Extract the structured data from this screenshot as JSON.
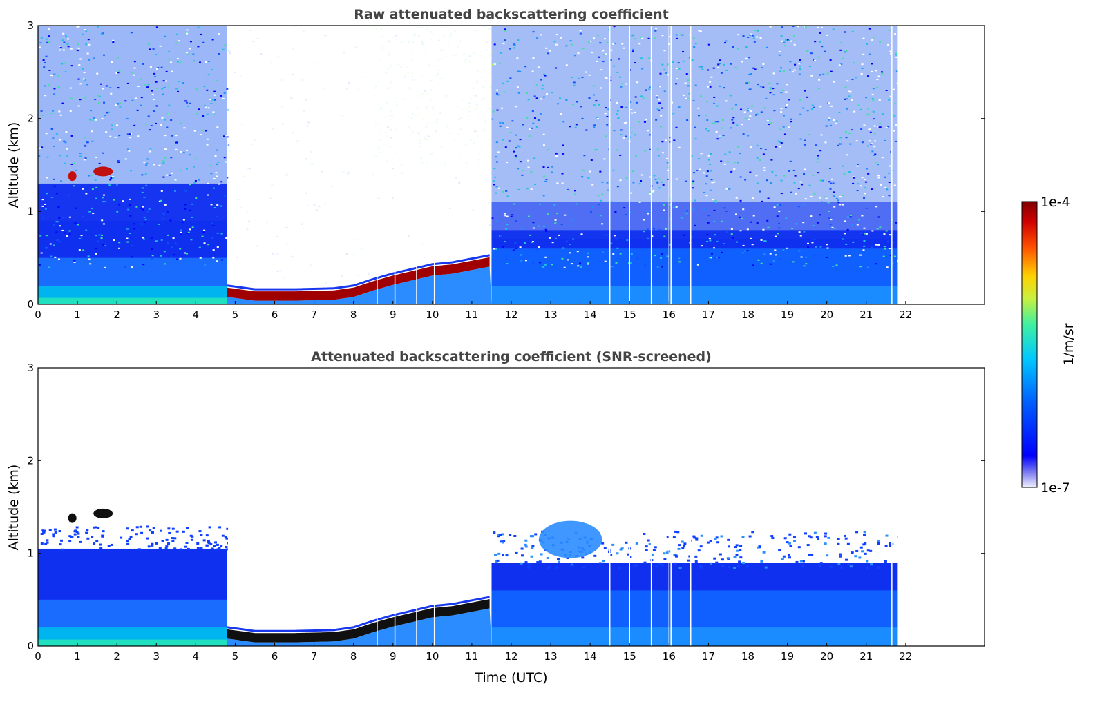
{
  "chart_data": [
    {
      "type": "heatmap",
      "title": "Raw attenuated backscattering coefficient",
      "xlabel": "",
      "ylabel": "Altitude (km)",
      "xlim": [
        0,
        24
      ],
      "ylim": [
        0,
        3
      ],
      "x_ticks": [
        "0",
        "1",
        "2",
        "3",
        "4",
        "5",
        "6",
        "7",
        "8",
        "9",
        "10",
        "11",
        "12",
        "13",
        "14",
        "15",
        "16",
        "17",
        "18",
        "19",
        "20",
        "21",
        "22"
      ],
      "y_ticks": [
        "0",
        "1",
        "2",
        "3"
      ],
      "data_end_time": 21.8,
      "screened": false,
      "cloud_base_km": [
        {
          "t": 4.8,
          "z": 0.13
        },
        {
          "t": 5.5,
          "z": 0.09
        },
        {
          "t": 6.5,
          "z": 0.09
        },
        {
          "t": 7.5,
          "z": 0.1
        },
        {
          "t": 8.0,
          "z": 0.13
        },
        {
          "t": 8.5,
          "z": 0.2
        },
        {
          "t": 9.0,
          "z": 0.26
        },
        {
          "t": 9.5,
          "z": 0.31
        },
        {
          "t": 10.0,
          "z": 0.36
        },
        {
          "t": 10.5,
          "z": 0.38
        },
        {
          "t": 11.0,
          "z": 0.42
        },
        {
          "t": 11.5,
          "z": 0.46
        }
      ]
    },
    {
      "type": "heatmap",
      "title": "Attenuated backscattering coefficient (SNR-screened)",
      "xlabel": "Time (UTC)",
      "ylabel": "Altitude (km)",
      "xlim": [
        0,
        24
      ],
      "ylim": [
        0,
        3
      ],
      "x_ticks": [
        "0",
        "1",
        "2",
        "3",
        "4",
        "5",
        "6",
        "7",
        "8",
        "9",
        "10",
        "11",
        "12",
        "13",
        "14",
        "15",
        "16",
        "17",
        "18",
        "19",
        "20",
        "21",
        "22"
      ],
      "y_ticks": [
        "0",
        "1",
        "2",
        "3"
      ],
      "data_end_time": 21.8,
      "screened": true
    }
  ],
  "colorbar": {
    "label": "1/m/sr",
    "max_label": "1e-4",
    "min_label": "1e-7",
    "colors": [
      "#e8e8ff",
      "#b8b8f4",
      "#8080f0",
      "#3030f5",
      "#0000ff",
      "#0038ff",
      "#0070ff",
      "#00a8ff",
      "#00d0f0",
      "#20e8c0",
      "#80f080",
      "#d0f040",
      "#ffe000",
      "#ffa000",
      "#ff5000",
      "#e00000",
      "#800000"
    ]
  }
}
